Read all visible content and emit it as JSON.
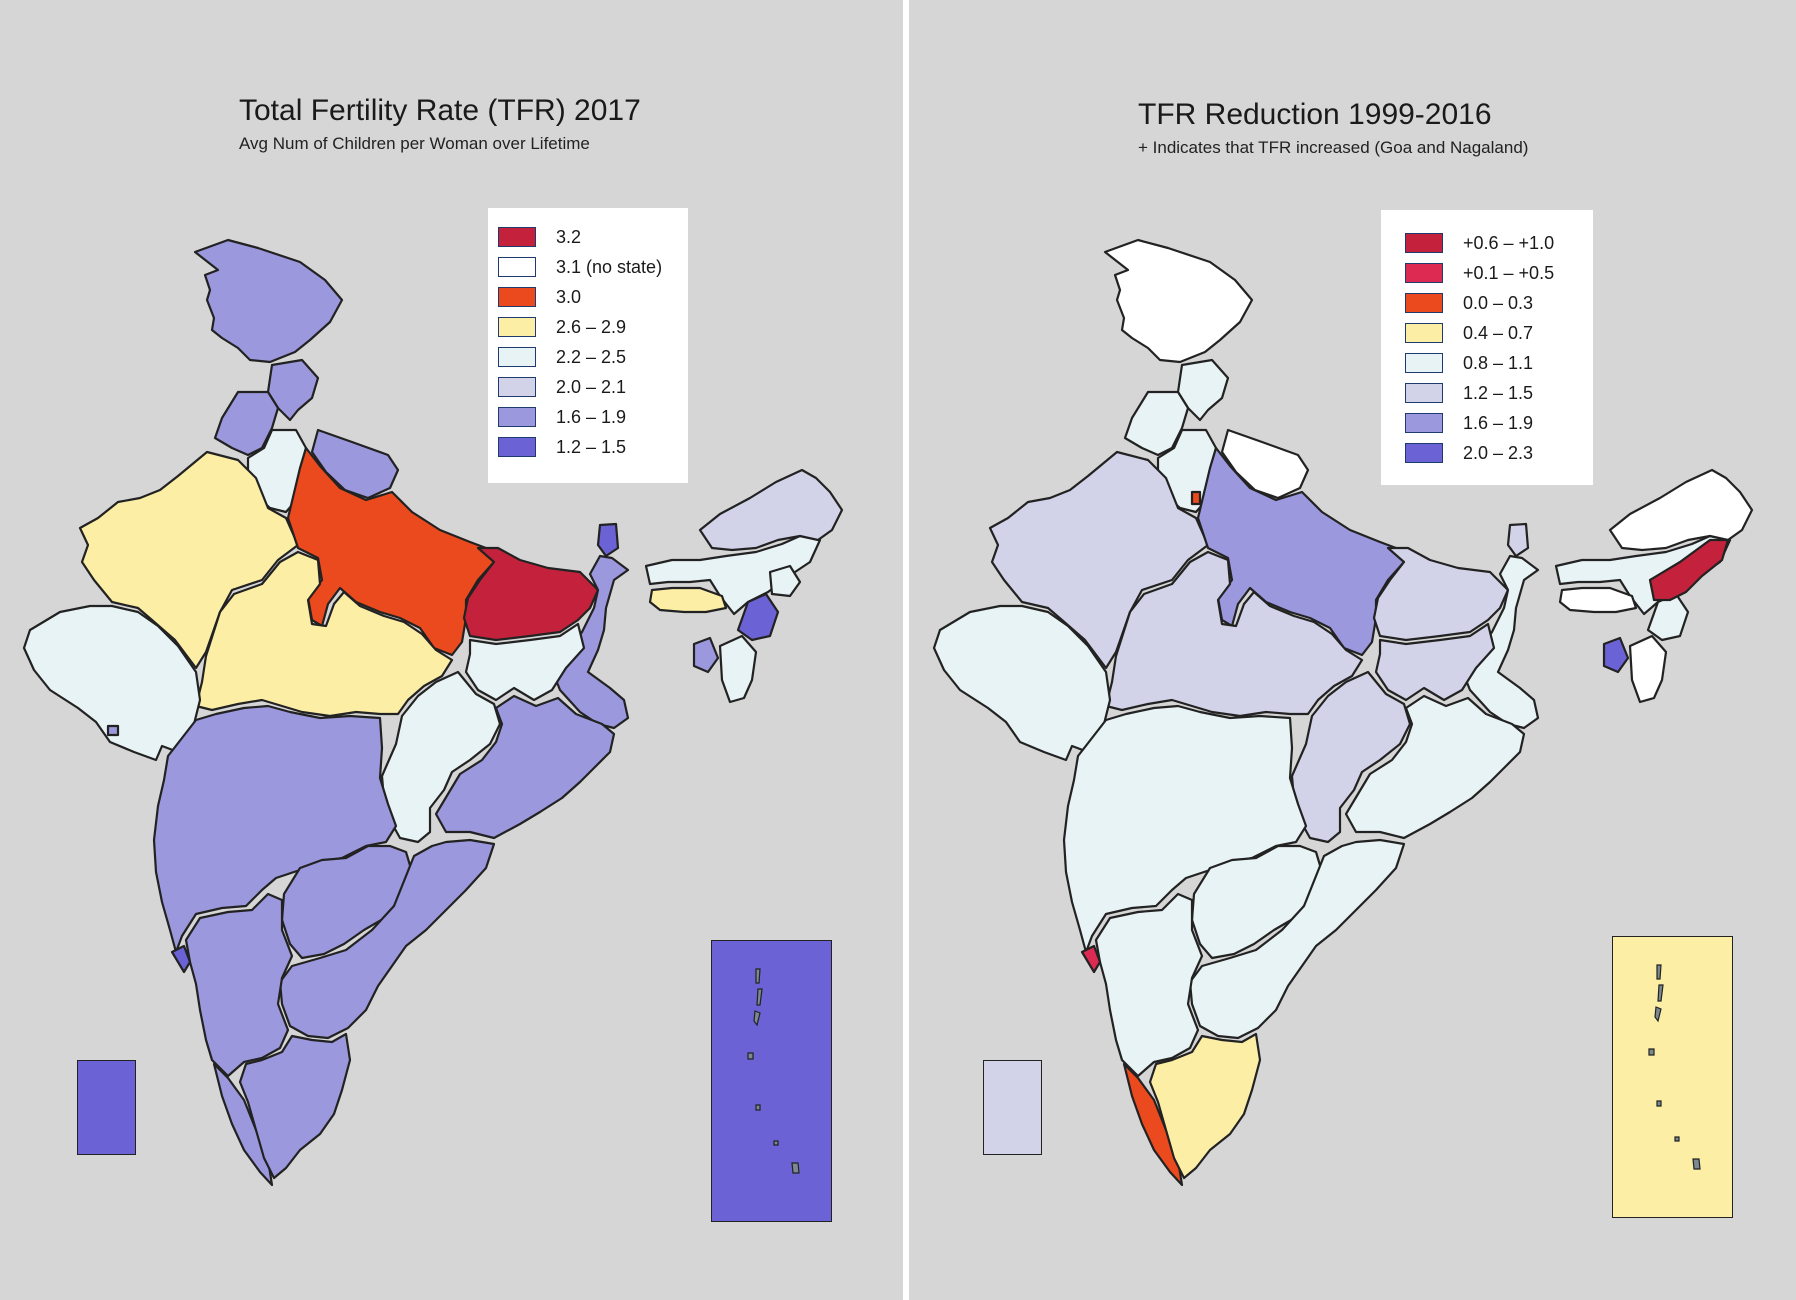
{
  "left_map": {
    "title": "Total Fertility Rate (TFR) 2017",
    "subtitle": "Avg Num of Children per Woman over Lifetime",
    "legend": [
      {
        "label": "3.2",
        "color": "#c4223c"
      },
      {
        "label": "3.1 (no state)",
        "color": "#ffffff"
      },
      {
        "label": "3.0",
        "color": "#ea4a1e"
      },
      {
        "label": "2.6 – 2.9",
        "color": "#fdeea6"
      },
      {
        "label": "2.2 – 2.5",
        "color": "#e8f3f5"
      },
      {
        "label": "2.0 – 2.1",
        "color": "#d2d2e9"
      },
      {
        "label": "1.6 – 1.9",
        "color": "#9b98dd"
      },
      {
        "label": "1.2 – 1.5",
        "color": "#6b62d5"
      }
    ],
    "colors": {
      "red": "#c4223c",
      "orange": "#ea4a1e",
      "yellow": "#fdeea6",
      "light": "#e8f3f5",
      "lavender": "#d2d2e9",
      "mid": "#9b98dd",
      "dark": "#6b62d5"
    }
  },
  "right_map": {
    "title": "TFR Reduction 1999-2016",
    "subtitle": "+ Indicates that TFR increased (Goa and Nagaland)",
    "legend": [
      {
        "label": "+0.6 – +1.0",
        "color": "#c4223c"
      },
      {
        "label": "+0.1 – +0.5",
        "color": "#dc2a52"
      },
      {
        "label": "0.0 – 0.3",
        "color": "#ea4a1e"
      },
      {
        "label": "0.4 – 0.7",
        "color": "#fdeea6"
      },
      {
        "label": "0.8 – 1.1",
        "color": "#e8f3f5"
      },
      {
        "label": "1.2 – 1.5",
        "color": "#d2d2e9"
      },
      {
        "label": "1.6 – 1.9",
        "color": "#9b98dd"
      },
      {
        "label": "2.0 – 2.3",
        "color": "#6b62d5"
      }
    ],
    "colors": {
      "red": "#c4223c",
      "pink": "#dc2a52",
      "orange": "#ea4a1e",
      "yellow": "#fdeea6",
      "light": "#e8f3f5",
      "lavender": "#d2d2e9",
      "mid": "#9b98dd",
      "dark": "#6b62d5",
      "white": "#ffffff"
    }
  }
}
